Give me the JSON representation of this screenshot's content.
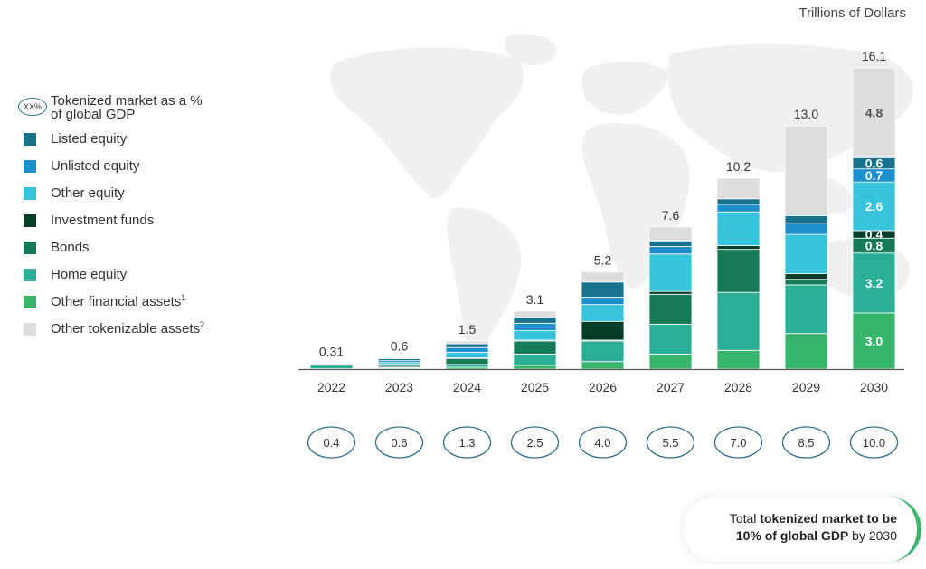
{
  "header": {
    "unit_label": "Trillions of Dollars"
  },
  "legend": {
    "gdp_oval": "XX%",
    "gdp_label_line1": "Tokenized market as a %",
    "gdp_label_line2": "of global GDP",
    "items": [
      {
        "label": "Listed equity",
        "sup": "",
        "color": "#18748d"
      },
      {
        "label": "Unlisted equity",
        "sup": "",
        "color": "#1c8fcf"
      },
      {
        "label": "Other equity",
        "sup": "",
        "color": "#36c3dc"
      },
      {
        "label": "Investment funds",
        "sup": "",
        "color": "#053f25"
      },
      {
        "label": "Bonds",
        "sup": "",
        "color": "#167a56"
      },
      {
        "label": "Home equity",
        "sup": "",
        "color": "#2bae96"
      },
      {
        "label": "Other financial assets",
        "sup": "1",
        "color": "#36b56b"
      },
      {
        "label": "Other tokenizable assets",
        "sup": "2",
        "color": "#dddddd"
      }
    ]
  },
  "chart_data": {
    "type": "bar",
    "stacked": true,
    "unit": "Trillions of Dollars",
    "categories": [
      "2022",
      "2023",
      "2024",
      "2025",
      "2026",
      "2027",
      "2028",
      "2029",
      "2030"
    ],
    "totals": [
      "0.31",
      "0.6",
      "1.5",
      "3.1",
      "5.2",
      "7.6",
      "10.2",
      "13.0",
      "16.1"
    ],
    "gdp_share_percent": [
      "0.4",
      "0.6",
      "1.3",
      "2.5",
      "4.0",
      "5.5",
      "7.0",
      "8.5",
      "10.0"
    ],
    "series": [
      {
        "name": "Other financial assets",
        "color": "#36b56b",
        "values": [
          0.02,
          0.05,
          0.1,
          0.2,
          0.4,
          0.8,
          1.0,
          1.9,
          3.0
        ],
        "labels": [
          "",
          "",
          "",
          "",
          "",
          "",
          "",
          "",
          "3.0"
        ]
      },
      {
        "name": "Home equity",
        "color": "#2bae96",
        "values": [
          0.19,
          0.05,
          0.15,
          0.6,
          1.1,
          1.6,
          3.1,
          2.6,
          3.2
        ],
        "labels": [
          "",
          "",
          "",
          "",
          "",
          "",
          "",
          "",
          "3.2"
        ]
      },
      {
        "name": "Bonds",
        "color": "#167a56",
        "values": [
          0.0,
          0.1,
          0.3,
          0.7,
          0.05,
          1.6,
          2.3,
          0.3,
          0.8
        ],
        "labels": [
          "",
          "",
          "",
          "",
          "",
          "",
          "",
          "",
          "0.8"
        ]
      },
      {
        "name": "Investment funds",
        "color": "#053f25",
        "values": [
          0.0,
          0.05,
          0.05,
          0.05,
          1.0,
          0.15,
          0.2,
          0.3,
          0.4
        ],
        "labels": [
          "",
          "",
          "",
          "",
          "",
          "",
          "",
          "",
          "0.4"
        ]
      },
      {
        "name": "Other equity",
        "color": "#36c3dc",
        "values": [
          0.0,
          0.1,
          0.3,
          0.5,
          0.9,
          2.0,
          1.8,
          2.1,
          2.6
        ],
        "labels": [
          "",
          "",
          "",
          "",
          "",
          "",
          "",
          "",
          "2.6"
        ]
      },
      {
        "name": "Unlisted equity",
        "color": "#1c8fcf",
        "values": [
          0.0,
          0.1,
          0.25,
          0.4,
          0.4,
          0.4,
          0.4,
          0.6,
          0.7
        ],
        "labels": [
          "",
          "",
          "",
          "",
          "",
          "",
          "",
          "",
          "0.7"
        ]
      },
      {
        "name": "Listed equity",
        "color": "#18748d",
        "values": [
          0.0,
          0.1,
          0.2,
          0.3,
          0.8,
          0.3,
          0.3,
          0.4,
          0.6
        ],
        "labels": [
          "",
          "",
          "",
          "",
          "",
          "",
          "",
          "",
          "0.6"
        ]
      },
      {
        "name": "Other tokenizable assets",
        "color": "#dddddd",
        "values": [
          0.1,
          0.05,
          0.15,
          0.35,
          0.55,
          0.75,
          1.1,
          4.8,
          4.8
        ],
        "labels": [
          "",
          "",
          "",
          "",
          "",
          "",
          "",
          "",
          "4.8"
        ]
      }
    ],
    "ylim": [
      0,
      16.1
    ],
    "grid": false,
    "legend_position": "left"
  },
  "callout": {
    "line1_pre": "Total ",
    "line1_bold": "tokenized market to be",
    "line2_bold": "10% of global GDP",
    "line2_post": " by 2030",
    "accent_color": "#3db56d"
  }
}
